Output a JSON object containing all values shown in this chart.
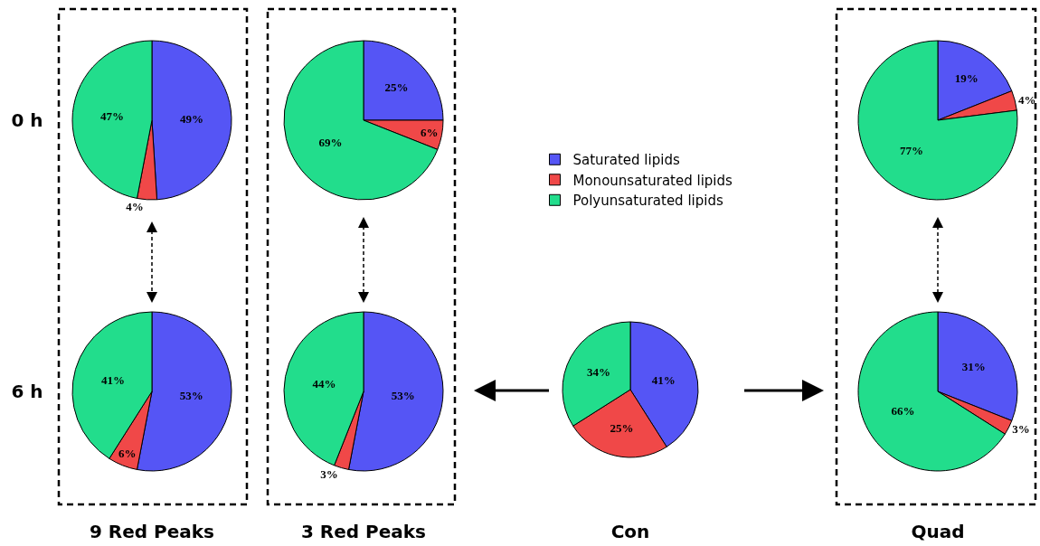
{
  "chart_data": [
    {
      "type": "pie",
      "ylabel": "0 h",
      "categories": [
        null,
        null,
        null
      ],
      "values": [
        49,
        4,
        47
      ],
      "value_labels": [
        "49%",
        "4%",
        "47%"
      ],
      "colors": [
        "#5555f5",
        "#f04848",
        "#22dd8c"
      ]
    },
    {
      "type": "pie",
      "categories": [
        null,
        null,
        null
      ],
      "values": [
        25,
        6,
        69
      ],
      "value_labels": [
        "25%",
        "6%",
        "69%"
      ],
      "colors": [
        "#5555f5",
        "#f04848",
        "#22dd8c"
      ]
    },
    {
      "type": "pie",
      "categories": [
        null,
        null,
        null
      ],
      "values": [
        19,
        4,
        77
      ],
      "value_labels": [
        "19%",
        "4%",
        "77%"
      ],
      "colors": [
        "#5555f5",
        "#f04848",
        "#22dd8c"
      ]
    },
    {
      "type": "pie",
      "ylabel": "6 h",
      "xlabel": "9 Red Peaks",
      "categories": [
        null,
        null,
        null
      ],
      "values": [
        53,
        6,
        41
      ],
      "value_labels": [
        "53%",
        "6%",
        "41%"
      ],
      "colors": [
        "#5555f5",
        "#f04848",
        "#22dd8c"
      ]
    },
    {
      "type": "pie",
      "xlabel": "3 Red Peaks",
      "categories": [
        null,
        null,
        null
      ],
      "values": [
        53,
        3,
        44
      ],
      "value_labels": [
        "53%",
        "3%",
        "44%"
      ],
      "colors": [
        "#5555f5",
        "#f04848",
        "#22dd8c"
      ]
    },
    {
      "type": "pie",
      "xlabel": "Con",
      "legend": "top",
      "categories": [
        "Saturated lipids",
        "Monounsaturated lipids",
        "Polyunsaturated lipids"
      ],
      "values": [
        41,
        25,
        34
      ],
      "value_labels": [
        "41%",
        "25%",
        "34%"
      ],
      "colors": [
        "#5555f5",
        "#f04848",
        "#22dd8c"
      ]
    },
    {
      "type": "pie",
      "xlabel": "Quad",
      "categories": [
        null,
        null,
        null
      ],
      "values": [
        31,
        3,
        66
      ],
      "value_labels": [
        "31%",
        "3%",
        "66%"
      ],
      "colors": [
        "#5555f5",
        "#f04848",
        "#22dd8c"
      ]
    }
  ]
}
